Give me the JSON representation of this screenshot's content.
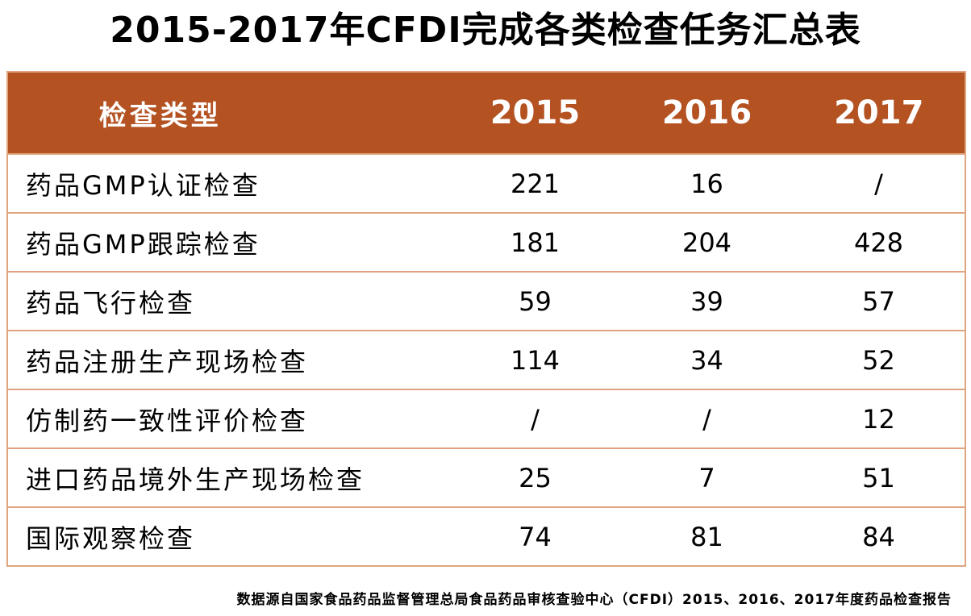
{
  "title": "2015-2017年CFDI完成各类检查任务汇总表",
  "table": {
    "headers": [
      "检查类型",
      "2015",
      "2016",
      "2017"
    ],
    "rows": [
      {
        "type": "药品GMP认证检查",
        "y2015": "221",
        "y2016": "16",
        "y2017": "/"
      },
      {
        "type": "药品GMP跟踪检查",
        "y2015": "181",
        "y2016": "204",
        "y2017": "428"
      },
      {
        "type": "药品飞行检查",
        "y2015": "59",
        "y2016": "39",
        "y2017": "57"
      },
      {
        "type": "药品注册生产现场检查",
        "y2015": "114",
        "y2016": "34",
        "y2017": "52"
      },
      {
        "type": "仿制药一致性评价检查",
        "y2015": "/",
        "y2016": "/",
        "y2017": "12"
      },
      {
        "type": "进口药品境外生产现场检查",
        "y2015": "25",
        "y2016": "7",
        "y2017": "51"
      },
      {
        "type": "国际观察检查",
        "y2015": "74",
        "y2016": "81",
        "y2017": "84"
      }
    ]
  },
  "footer": "数据源自国家食品药品监督管理总局食品药品审核查验中心（CFDI）2015、2016、2017年度药品检查报告",
  "colors": {
    "header_bg": "#b45222",
    "border": "#e0a47e",
    "header_text": "#ffffff"
  }
}
